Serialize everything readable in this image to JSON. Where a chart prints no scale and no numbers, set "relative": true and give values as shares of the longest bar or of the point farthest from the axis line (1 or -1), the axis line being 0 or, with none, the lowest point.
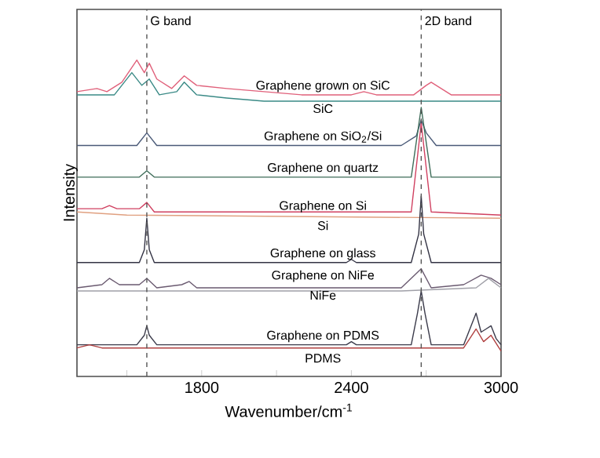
{
  "chart_data": {
    "type": "line",
    "relative": true,
    "xlabel": "Wavenumber/cm$^{-1}$",
    "ylabel": "Intensity",
    "xlim": [
      1300,
      3000
    ],
    "xticks": [
      {
        "value": 1500,
        "label": null
      },
      1800,
      {
        "value": 2100,
        "label": null
      },
      2400,
      {
        "value": 2700,
        "label": null
      },
      3000
    ],
    "grid": false,
    "legend": false,
    "marker": "none",
    "line_style": "solid",
    "ref_lines": [
      {
        "axis": "x",
        "value": 1580,
        "label": "G band",
        "line_style": "dashed",
        "color": "#555555"
      },
      {
        "axis": "x",
        "value": 2680,
        "label": "2D band",
        "line_style": "dashed",
        "color": "#555555"
      }
    ],
    "series": [
      {
        "name": "Graphene grown on SiC",
        "color": "#e0607a",
        "x": [
          1300,
          1380,
          1420,
          1480,
          1540,
          1570,
          1590,
          1620,
          1680,
          1730,
          1780,
          1900,
          2050,
          2200,
          2400,
          2450,
          2500,
          2650,
          2700,
          2720,
          2760,
          2800,
          3000
        ],
        "values": [
          0.9,
          0.91,
          0.9,
          0.93,
          1.0,
          0.96,
          0.99,
          0.94,
          0.91,
          0.95,
          0.92,
          0.91,
          0.9,
          0.89,
          0.89,
          0.9,
          0.89,
          0.89,
          0.92,
          0.93,
          0.91,
          0.89,
          0.89
        ]
      },
      {
        "name": "SiC",
        "color": "#3a8a86",
        "x": [
          1300,
          1450,
          1520,
          1560,
          1590,
          1630,
          1700,
          1730,
          1780,
          1900,
          2050,
          2400,
          3000
        ],
        "values": [
          0.89,
          0.89,
          0.96,
          0.92,
          0.94,
          0.89,
          0.9,
          0.93,
          0.89,
          0.88,
          0.87,
          0.87,
          0.87
        ]
      },
      {
        "name": "Graphene on SiO$_{2}$/Si",
        "color": "#4a5a78",
        "x": [
          1300,
          1540,
          1580,
          1620,
          2600,
          2660,
          2680,
          2700,
          2740,
          3000
        ],
        "values": [
          0.73,
          0.73,
          0.77,
          0.73,
          0.73,
          0.76,
          0.81,
          0.77,
          0.73,
          0.73
        ]
      },
      {
        "name": "Graphene on quartz",
        "color": "#3f6d5a",
        "x": [
          1300,
          1550,
          1580,
          1610,
          2640,
          2680,
          2720,
          3000
        ],
        "values": [
          0.63,
          0.63,
          0.65,
          0.63,
          0.63,
          0.85,
          0.63,
          0.63
        ]
      },
      {
        "name": "Graphene on Si",
        "color": "#d04060",
        "x": [
          1300,
          1400,
          1430,
          1460,
          1550,
          1580,
          1610,
          2640,
          2680,
          2720,
          3000
        ],
        "values": [
          0.53,
          0.53,
          0.54,
          0.53,
          0.53,
          0.55,
          0.52,
          0.52,
          0.8,
          0.52,
          0.51
        ]
      },
      {
        "name": "Si",
        "color": "#e0a080",
        "x": [
          1300,
          1500,
          3000
        ],
        "values": [
          0.52,
          0.51,
          0.5
        ]
      },
      {
        "name": "Graphene on glass",
        "color": "#333344",
        "x": [
          1300,
          1550,
          1570,
          1580,
          1590,
          1610,
          2380,
          2400,
          2420,
          2640,
          2670,
          2680,
          2690,
          2720,
          3000
        ],
        "values": [
          0.36,
          0.36,
          0.4,
          0.5,
          0.4,
          0.36,
          0.36,
          0.37,
          0.36,
          0.36,
          0.45,
          0.57,
          0.45,
          0.36,
          0.36
        ]
      },
      {
        "name": "Graphene on NiFe",
        "color": "#6a5a70",
        "x": [
          1300,
          1400,
          1430,
          1470,
          1550,
          1580,
          1620,
          1720,
          1750,
          1780,
          2600,
          2680,
          2720,
          2850,
          2920,
          2960,
          3000
        ],
        "values": [
          0.28,
          0.29,
          0.31,
          0.29,
          0.29,
          0.31,
          0.28,
          0.29,
          0.3,
          0.28,
          0.28,
          0.34,
          0.28,
          0.29,
          0.32,
          0.31,
          0.29
        ]
      },
      {
        "name": "NiFe",
        "color": "#a0a0a8",
        "x": [
          1300,
          1400,
          2600,
          2900,
          2950,
          3000
        ],
        "values": [
          0.27,
          0.27,
          0.27,
          0.28,
          0.31,
          0.28
        ]
      },
      {
        "name": "Graphene on PDMS",
        "color": "#3a3a4a",
        "x": [
          1300,
          1540,
          1570,
          1580,
          1590,
          1620,
          2380,
          2400,
          2420,
          2640,
          2665,
          2680,
          2695,
          2720,
          2850,
          2880,
          2900,
          2920,
          2940,
          2960,
          2980,
          3000
        ],
        "values": [
          0.1,
          0.1,
          0.13,
          0.16,
          0.13,
          0.1,
          0.1,
          0.11,
          0.1,
          0.1,
          0.2,
          0.27,
          0.2,
          0.1,
          0.1,
          0.16,
          0.2,
          0.14,
          0.15,
          0.16,
          0.12,
          0.1
        ]
      },
      {
        "name": "PDMS",
        "color": "#b04040",
        "x": [
          1300,
          1350,
          1400,
          2850,
          2900,
          2930,
          2960,
          3000
        ],
        "values": [
          0.09,
          0.1,
          0.09,
          0.09,
          0.15,
          0.11,
          0.13,
          0.08
        ]
      }
    ]
  }
}
